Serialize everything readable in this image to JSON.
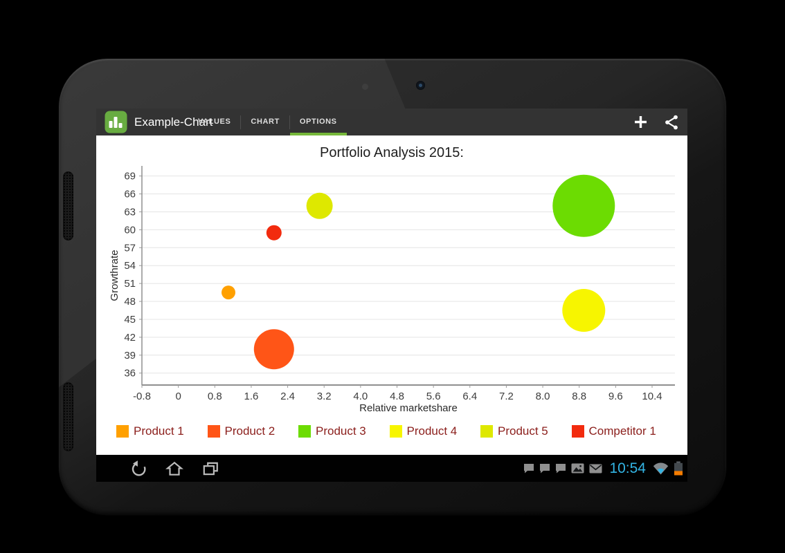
{
  "app_bar": {
    "title": "Example-Chart",
    "tabs": [
      {
        "label": "VALUES",
        "active": false
      },
      {
        "label": "CHART",
        "active": false
      },
      {
        "label": "OPTIONS",
        "active": true
      }
    ],
    "actions": [
      {
        "name": "add",
        "glyph": "+"
      },
      {
        "name": "share"
      }
    ]
  },
  "colors": {
    "accent_green": "#76B83A",
    "app_icon_green": "#68AC41",
    "holo_blue": "#33B5E5",
    "battery_warning": "#F57C00",
    "legend_text": "#8B1E1B"
  },
  "chart_data": {
    "type": "scatter",
    "subtype": "bubble",
    "title": "Portfolio Analysis 2015:",
    "xlabel": "Relative marketshare",
    "ylabel": "Growthrate",
    "xlim": [
      -0.8,
      10.9
    ],
    "ylim": [
      34.0,
      70.9
    ],
    "x_ticks": [
      "-0.8",
      "0",
      "0.8",
      "1.6",
      "2.4",
      "3.2",
      "4.0",
      "4.8",
      "5.6",
      "6.4",
      "7.2",
      "8.0",
      "8.8",
      "9.6",
      "10.4"
    ],
    "y_ticks": [
      69,
      66,
      63,
      60,
      57,
      54,
      51,
      48,
      45,
      42,
      39,
      36
    ],
    "grid": "horizontal",
    "legend_position": "bottom",
    "series": [
      {
        "name": "Product 1",
        "color": "#FFA000",
        "x": 1.1,
        "y": 49.5,
        "radius_px": 10
      },
      {
        "name": "Product 2",
        "color": "#FF5517",
        "x": 2.1,
        "y": 40,
        "radius_px": 29
      },
      {
        "name": "Product 3",
        "color": "#6CDC02",
        "x": 8.9,
        "y": 64,
        "radius_px": 45
      },
      {
        "name": "Product 4",
        "color": "#F7F500",
        "x": 8.9,
        "y": 46.5,
        "radius_px": 31
      },
      {
        "name": "Product 5",
        "color": "#DEE800",
        "x": 3.1,
        "y": 64,
        "radius_px": 19
      },
      {
        "name": "Competitor 1",
        "color": "#F22B0E",
        "x": 2.1,
        "y": 59.5,
        "radius_px": 11
      }
    ]
  },
  "nav_bar": {
    "buttons": [
      "back",
      "home",
      "recents"
    ]
  },
  "status_bar": {
    "time": "10:54",
    "icons": [
      "chat",
      "chat",
      "chat",
      "gallery",
      "email",
      "wifi",
      "battery"
    ]
  }
}
